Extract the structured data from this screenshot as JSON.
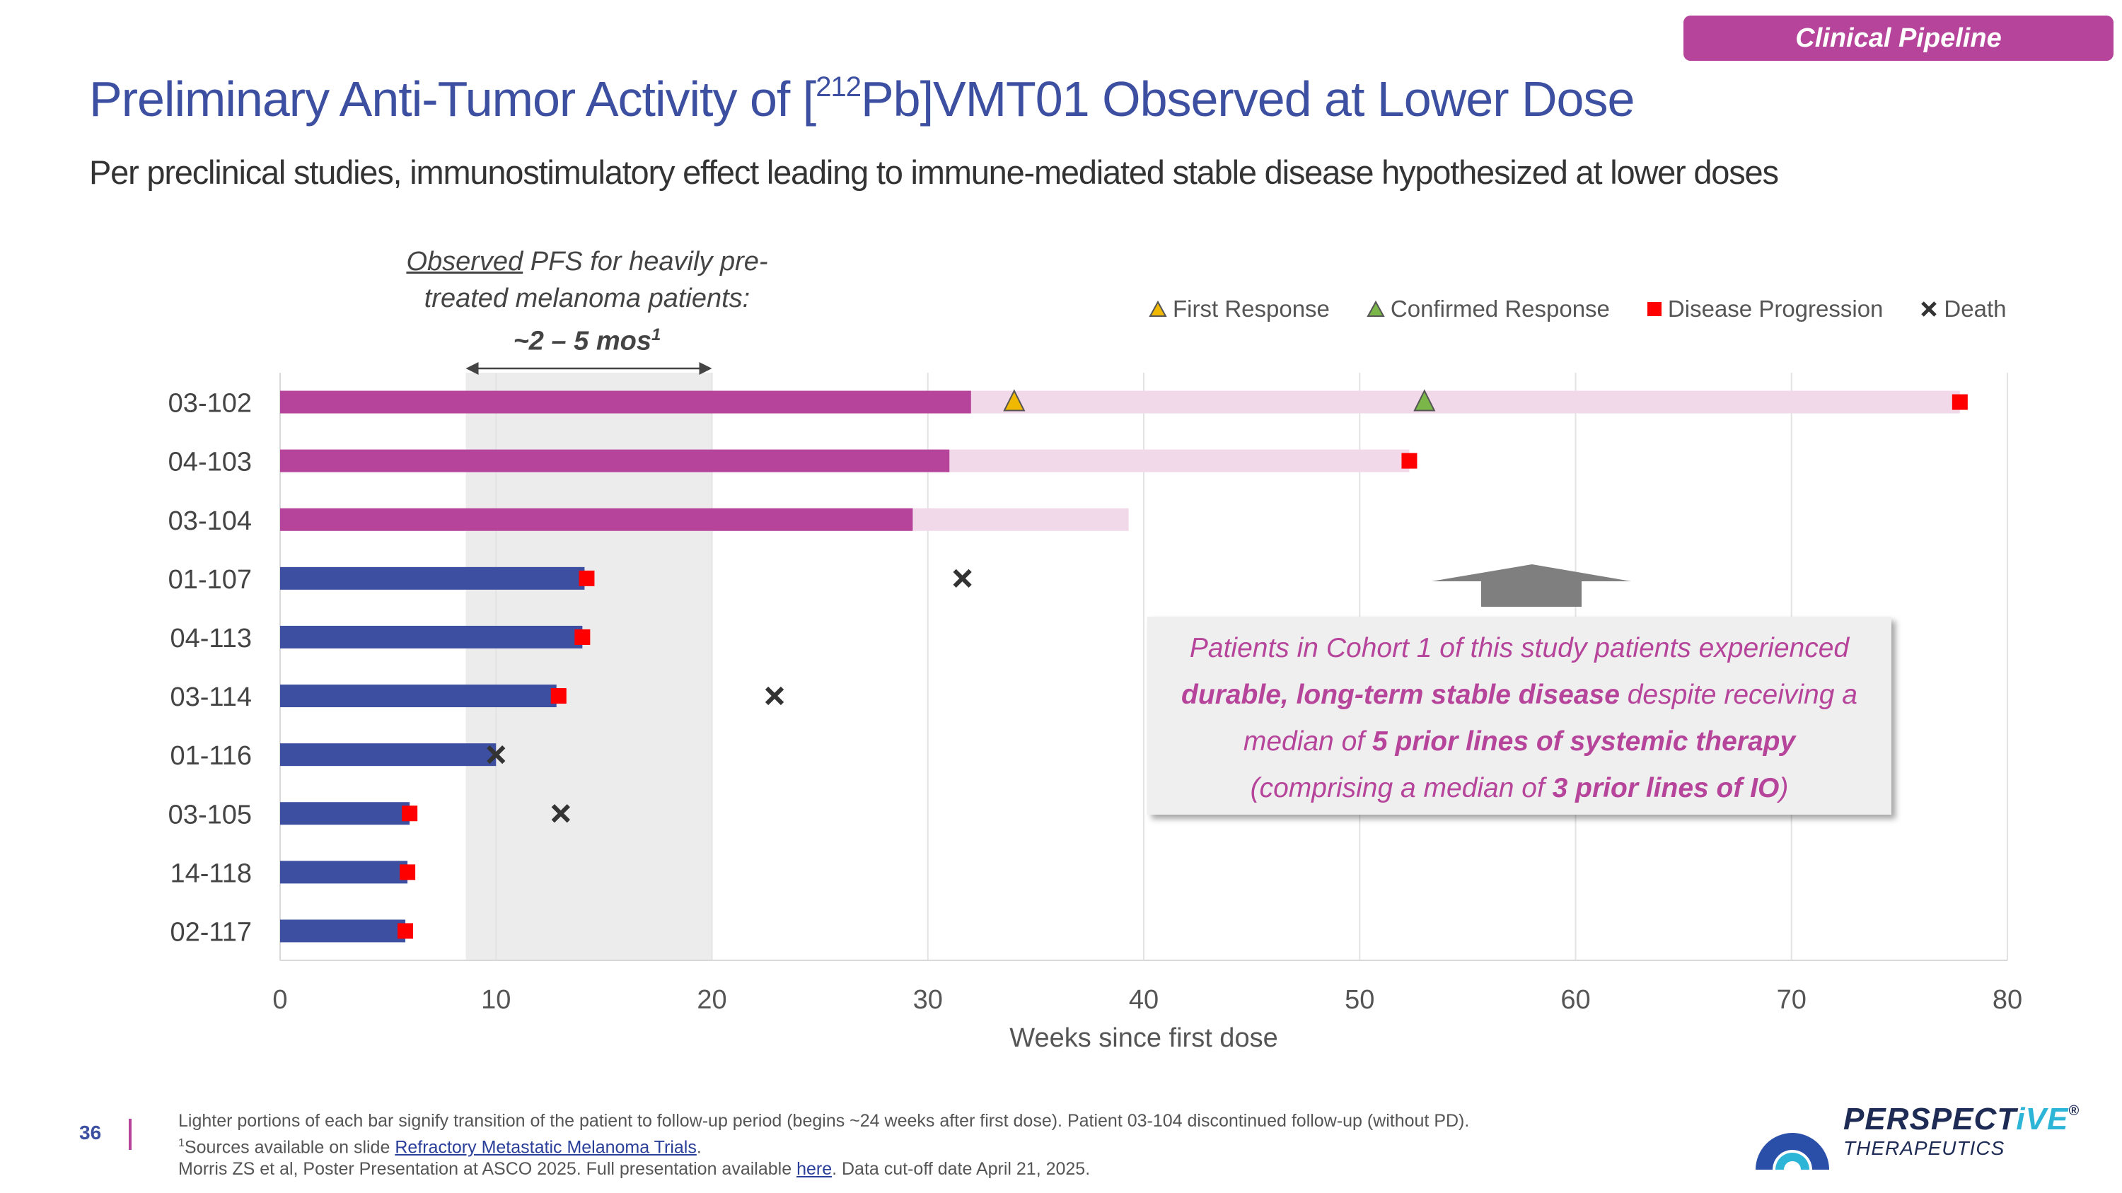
{
  "header": {
    "tag": "Clinical Pipeline",
    "title_pre": "Preliminary Anti-Tumor Activity of [",
    "title_sup": "212",
    "title_post": "Pb]VMT01 Observed at Lower Dose",
    "subtitle": "Per preclinical studies, immunostimulatory effect leading to immune-mediated stable disease hypothesized at lower doses"
  },
  "observed_note": {
    "line1_underline": "Observed",
    "line1_rest": " PFS for heavily pre-",
    "line2": "treated melanoma patients:",
    "line3": "~2 – 5 mos",
    "line3_sup": "1"
  },
  "legend": [
    {
      "label": "First Response",
      "symbol": "triangle",
      "color": "#f0b800"
    },
    {
      "label": "Confirmed Response",
      "symbol": "triangle",
      "color": "#7ab648"
    },
    {
      "label": "Disease Progression",
      "symbol": "square",
      "color": "#ff0000"
    },
    {
      "label": "Death",
      "symbol": "x",
      "color": "#333333"
    }
  ],
  "callout": {
    "l1": "Patients in Cohort 1 of this study patients experienced",
    "l2_bold": "durable, long-term stable disease",
    "l2_rest": " despite receiving a",
    "l3_pre": "median of ",
    "l3_bold": "5 prior lines of systemic therapy",
    "l4_pre": "(comprising a median of ",
    "l4_bold": "3 prior lines of IO",
    "l4_post": ")"
  },
  "chart_data": {
    "type": "bar",
    "orientation": "horizontal",
    "xlabel": "Weeks since first dose",
    "xlim": [
      0,
      80
    ],
    "xticks": [
      0,
      10,
      20,
      30,
      40,
      50,
      60,
      70,
      80
    ],
    "shaded_region": [
      8.6,
      20
    ],
    "categories": [
      "03-102",
      "04-103",
      "03-104",
      "01-107",
      "04-113",
      "03-114",
      "01-116",
      "03-105",
      "14-118",
      "02-117"
    ],
    "treatment_weeks": [
      32,
      31,
      29.3,
      14.1,
      14,
      12.8,
      10,
      6,
      5.9,
      5.8
    ],
    "followup_end_weeks": [
      77.8,
      52.3,
      39.3,
      null,
      null,
      null,
      null,
      null,
      null,
      null
    ],
    "colors": {
      "cohort_treatment": "#b5449a",
      "followup": "#f2d9ea",
      "treatment": "#3c4fa0",
      "shade": "#ececec"
    },
    "cohort1_rows": 3,
    "events": [
      {
        "patient": "03-102",
        "type": "first_response",
        "week": 34
      },
      {
        "patient": "03-102",
        "type": "confirmed_response",
        "week": 53
      },
      {
        "patient": "03-102",
        "type": "disease_progression",
        "week": 77.8
      },
      {
        "patient": "04-103",
        "type": "disease_progression",
        "week": 52.3
      },
      {
        "patient": "01-107",
        "type": "disease_progression",
        "week": 14.2
      },
      {
        "patient": "01-107",
        "type": "death",
        "week": 31.6
      },
      {
        "patient": "04-113",
        "type": "disease_progression",
        "week": 14
      },
      {
        "patient": "03-114",
        "type": "disease_progression",
        "week": 12.9
      },
      {
        "patient": "03-114",
        "type": "death",
        "week": 22.9
      },
      {
        "patient": "01-116",
        "type": "death",
        "week": 10
      },
      {
        "patient": "03-105",
        "type": "disease_progression",
        "week": 6
      },
      {
        "patient": "03-105",
        "type": "death",
        "week": 13
      },
      {
        "patient": "14-118",
        "type": "disease_progression",
        "week": 5.9
      },
      {
        "patient": "02-117",
        "type": "disease_progression",
        "week": 5.8
      }
    ]
  },
  "footer": {
    "page": "36",
    "note1": "Lighter portions of each bar signify transition of the patient to follow-up period (begins ~24 weeks after first dose). Patient 03-104 discontinued follow-up (without PD).",
    "note2_sup": "1",
    "note2_pre": "Sources available on slide ",
    "note2_link": "Refractory Metastatic Melanoma Trials",
    "note2_post": ".",
    "note3_pre": "Morris ZS et al, Poster Presentation at ASCO 2025. Full presentation available ",
    "note3_link": "here",
    "note3_post": ". Data cut-off date April 21, 2025.",
    "logo_main_a": "PERSPECT",
    "logo_main_b": "iVE",
    "logo_reg": "®",
    "logo_sub": "THERAPEUTICS"
  }
}
